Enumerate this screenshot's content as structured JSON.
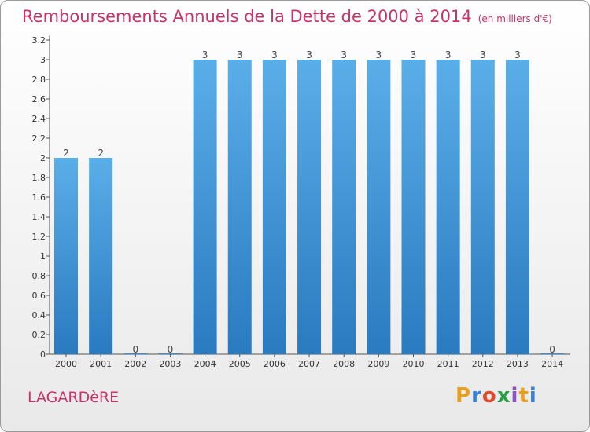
{
  "header": {
    "title": "Remboursements Annuels de la Dette de 2000 à 2014",
    "unit_note": "(en milliers d'€)"
  },
  "footer": {
    "commune": "LAGARDèRE",
    "brand": "Proxiti"
  },
  "colors": {
    "accent": "#c8336b",
    "bar_top": "#5aaee8",
    "bar_bottom": "#2a7ac0",
    "axis": "#555555"
  },
  "chart_data": {
    "type": "bar",
    "title": "Remboursements Annuels de la Dette de 2000 à 2014",
    "subtitle": "(en milliers d'€)",
    "xlabel": "",
    "ylabel": "",
    "categories": [
      "2000",
      "2001",
      "2002",
      "2003",
      "2004",
      "2005",
      "2006",
      "2007",
      "2008",
      "2009",
      "2010",
      "2011",
      "2012",
      "2013",
      "2014"
    ],
    "values": [
      2,
      2,
      0,
      0,
      3,
      3,
      3,
      3,
      3,
      3,
      3,
      3,
      3,
      3,
      0
    ],
    "data_labels": [
      "2",
      "2",
      "0",
      "0",
      "3",
      "3",
      "3",
      "3",
      "3",
      "3",
      "3",
      "3",
      "3",
      "3",
      "0"
    ],
    "ylim": [
      0,
      3.2
    ],
    "yticks": [
      0,
      0.2,
      0.4,
      0.6,
      0.8,
      1,
      1.2,
      1.4,
      1.6,
      1.8,
      2,
      2.2,
      2.4,
      2.6,
      2.8,
      3,
      3.2
    ],
    "ytick_labels": [
      "0",
      "0.2",
      "0.4",
      "0.6",
      "0.8",
      "1",
      "1.2",
      "1.4",
      "1.6",
      "1.8",
      "2",
      "2.2",
      "2.4",
      "2.6",
      "2.8",
      "3",
      "3.2"
    ],
    "grid": false,
    "legend": "none"
  }
}
